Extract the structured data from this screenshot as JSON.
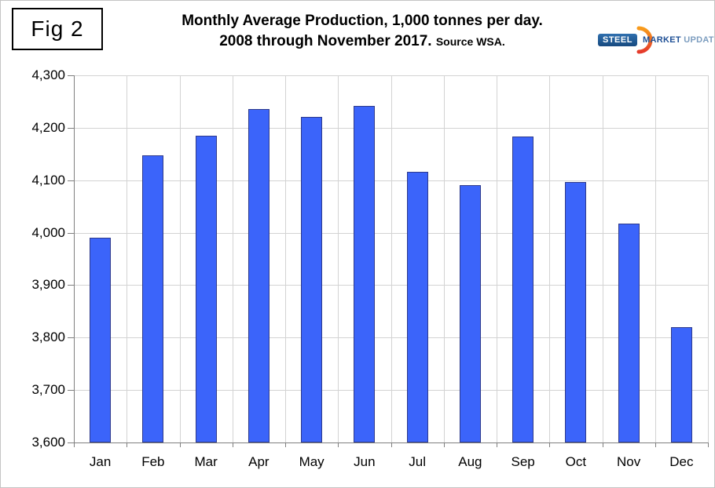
{
  "figure_label": "Fig 2",
  "header": {
    "title_line1": "Monthly Average Production, 1,000 tonnes per day.",
    "title_line2": "2008 through November 2017.",
    "source_note": "Source WSA."
  },
  "logo": {
    "steel": "STEEL",
    "market": "MARKET",
    "update": "UPDATE",
    "steel_bg": "#17497F",
    "market_color": "#1F5096",
    "update_color": "#7C9DBF",
    "crescent_top_color": "#F89C1C",
    "crescent_bottom_color": "#E53A2B"
  },
  "chart_data": {
    "type": "bar",
    "title": "Monthly Average Production, 1,000 tonnes per day.",
    "subtitle": "2008 through November 2017.",
    "source": "Source WSA.",
    "categories": [
      "Jan",
      "Feb",
      "Mar",
      "Apr",
      "May",
      "Jun",
      "Jul",
      "Aug",
      "Sep",
      "Oct",
      "Nov",
      "Dec"
    ],
    "values": [
      3990,
      4147,
      4185,
      4236,
      4221,
      4242,
      4116,
      4090,
      4184,
      4096,
      4017,
      3820
    ],
    "ylim": [
      3600,
      4300
    ],
    "ytick_step": 100,
    "yticks": [
      {
        "value": 4300,
        "label": "4,300"
      },
      {
        "value": 4200,
        "label": "4,200"
      },
      {
        "value": 4100,
        "label": "4,100"
      },
      {
        "value": 4000,
        "label": "4,000"
      },
      {
        "value": 3900,
        "label": "3,900"
      },
      {
        "value": 3800,
        "label": "3,800"
      },
      {
        "value": 3700,
        "label": "3,700"
      },
      {
        "value": 3600,
        "label": "3,600"
      }
    ],
    "grid": true,
    "legend": "none",
    "colors": {
      "bar_fill": "#3B64FA",
      "bar_border": "#2E3A8C",
      "gridline": "#D3D3D3",
      "axis": "#7F7F7F",
      "text": "#000000"
    }
  }
}
